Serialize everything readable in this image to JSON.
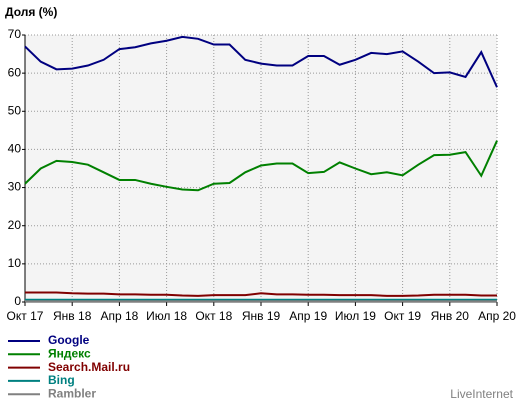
{
  "chart_data": {
    "type": "line",
    "title": "Доля (%)",
    "categories": [
      "Окт 17",
      null,
      null,
      "Янв 18",
      null,
      null,
      "Апр 18",
      null,
      null,
      "Июл 18",
      null,
      null,
      "Окт 18",
      null,
      null,
      "Янв 19",
      null,
      null,
      "Апр 19",
      null,
      null,
      "Июл 19",
      null,
      null,
      "Окт 19",
      null,
      null,
      "Янв 20",
      null,
      null,
      "Апр 20"
    ],
    "series": [
      {
        "name": "Google",
        "color": "#000080",
        "values": [
          67,
          63,
          61,
          61.2,
          62,
          63.5,
          66.3,
          66.8,
          67.8,
          68.5,
          69.5,
          69,
          67.5,
          67.5,
          63.5,
          62.5,
          62,
          62,
          64.5,
          64.5,
          62.2,
          63.5,
          65.3,
          65,
          65.7,
          63,
          60,
          60.2,
          59,
          65.5,
          56.3
        ]
      },
      {
        "name": "Яндекс",
        "color": "#008000",
        "values": [
          31,
          35,
          37,
          36.7,
          36,
          34,
          32,
          32,
          31,
          30.2,
          29.5,
          29.3,
          31,
          31.2,
          34,
          35.8,
          36.3,
          36.3,
          33.8,
          34.1,
          36.6,
          35,
          33.5,
          34,
          33.2,
          36,
          38.5,
          38.6,
          39.3,
          33.1,
          42.3
        ]
      },
      {
        "name": "Search.Mail.ru",
        "color": "#800000",
        "values": [
          2.5,
          2.5,
          2.5,
          2.3,
          2.2,
          2.2,
          2.0,
          2.0,
          1.9,
          1.9,
          1.7,
          1.6,
          1.8,
          1.8,
          1.8,
          2.3,
          2.0,
          2.0,
          1.9,
          1.9,
          1.8,
          1.8,
          1.8,
          1.6,
          1.6,
          1.7,
          1.9,
          1.9,
          1.9,
          1.7,
          1.7
        ]
      },
      {
        "name": "Bing",
        "color": "#008080",
        "values": [
          0.6,
          0.6,
          0.6,
          0.6,
          0.6,
          0.6,
          0.6,
          0.6,
          0.6,
          0.6,
          0.6,
          0.6,
          0.6,
          0.6,
          0.6,
          0.6,
          0.6,
          0.6,
          0.6,
          0.6,
          0.6,
          0.6,
          0.6,
          0.6,
          0.6,
          0.6,
          0.6,
          0.6,
          0.6,
          0.6,
          0.6
        ]
      },
      {
        "name": "Rambler",
        "color": "#808080",
        "values": [
          0.2,
          0.2,
          0.2,
          0.2,
          0.2,
          0.2,
          0.2,
          0.2,
          0.2,
          0.2,
          0.2,
          0.2,
          0.2,
          0.2,
          0.2,
          0.2,
          0.2,
          0.2,
          0.2,
          0.2,
          0.2,
          0.2,
          0.2,
          0.2,
          0.2,
          0.2,
          0.2,
          0.2,
          0.2,
          0.2,
          0.2
        ]
      }
    ],
    "ylim": [
      0,
      70
    ],
    "yticks": [
      0,
      10,
      20,
      30,
      40,
      50,
      60,
      70
    ],
    "grid": true,
    "legend": "bottom-left",
    "source": "LiveInternet"
  }
}
